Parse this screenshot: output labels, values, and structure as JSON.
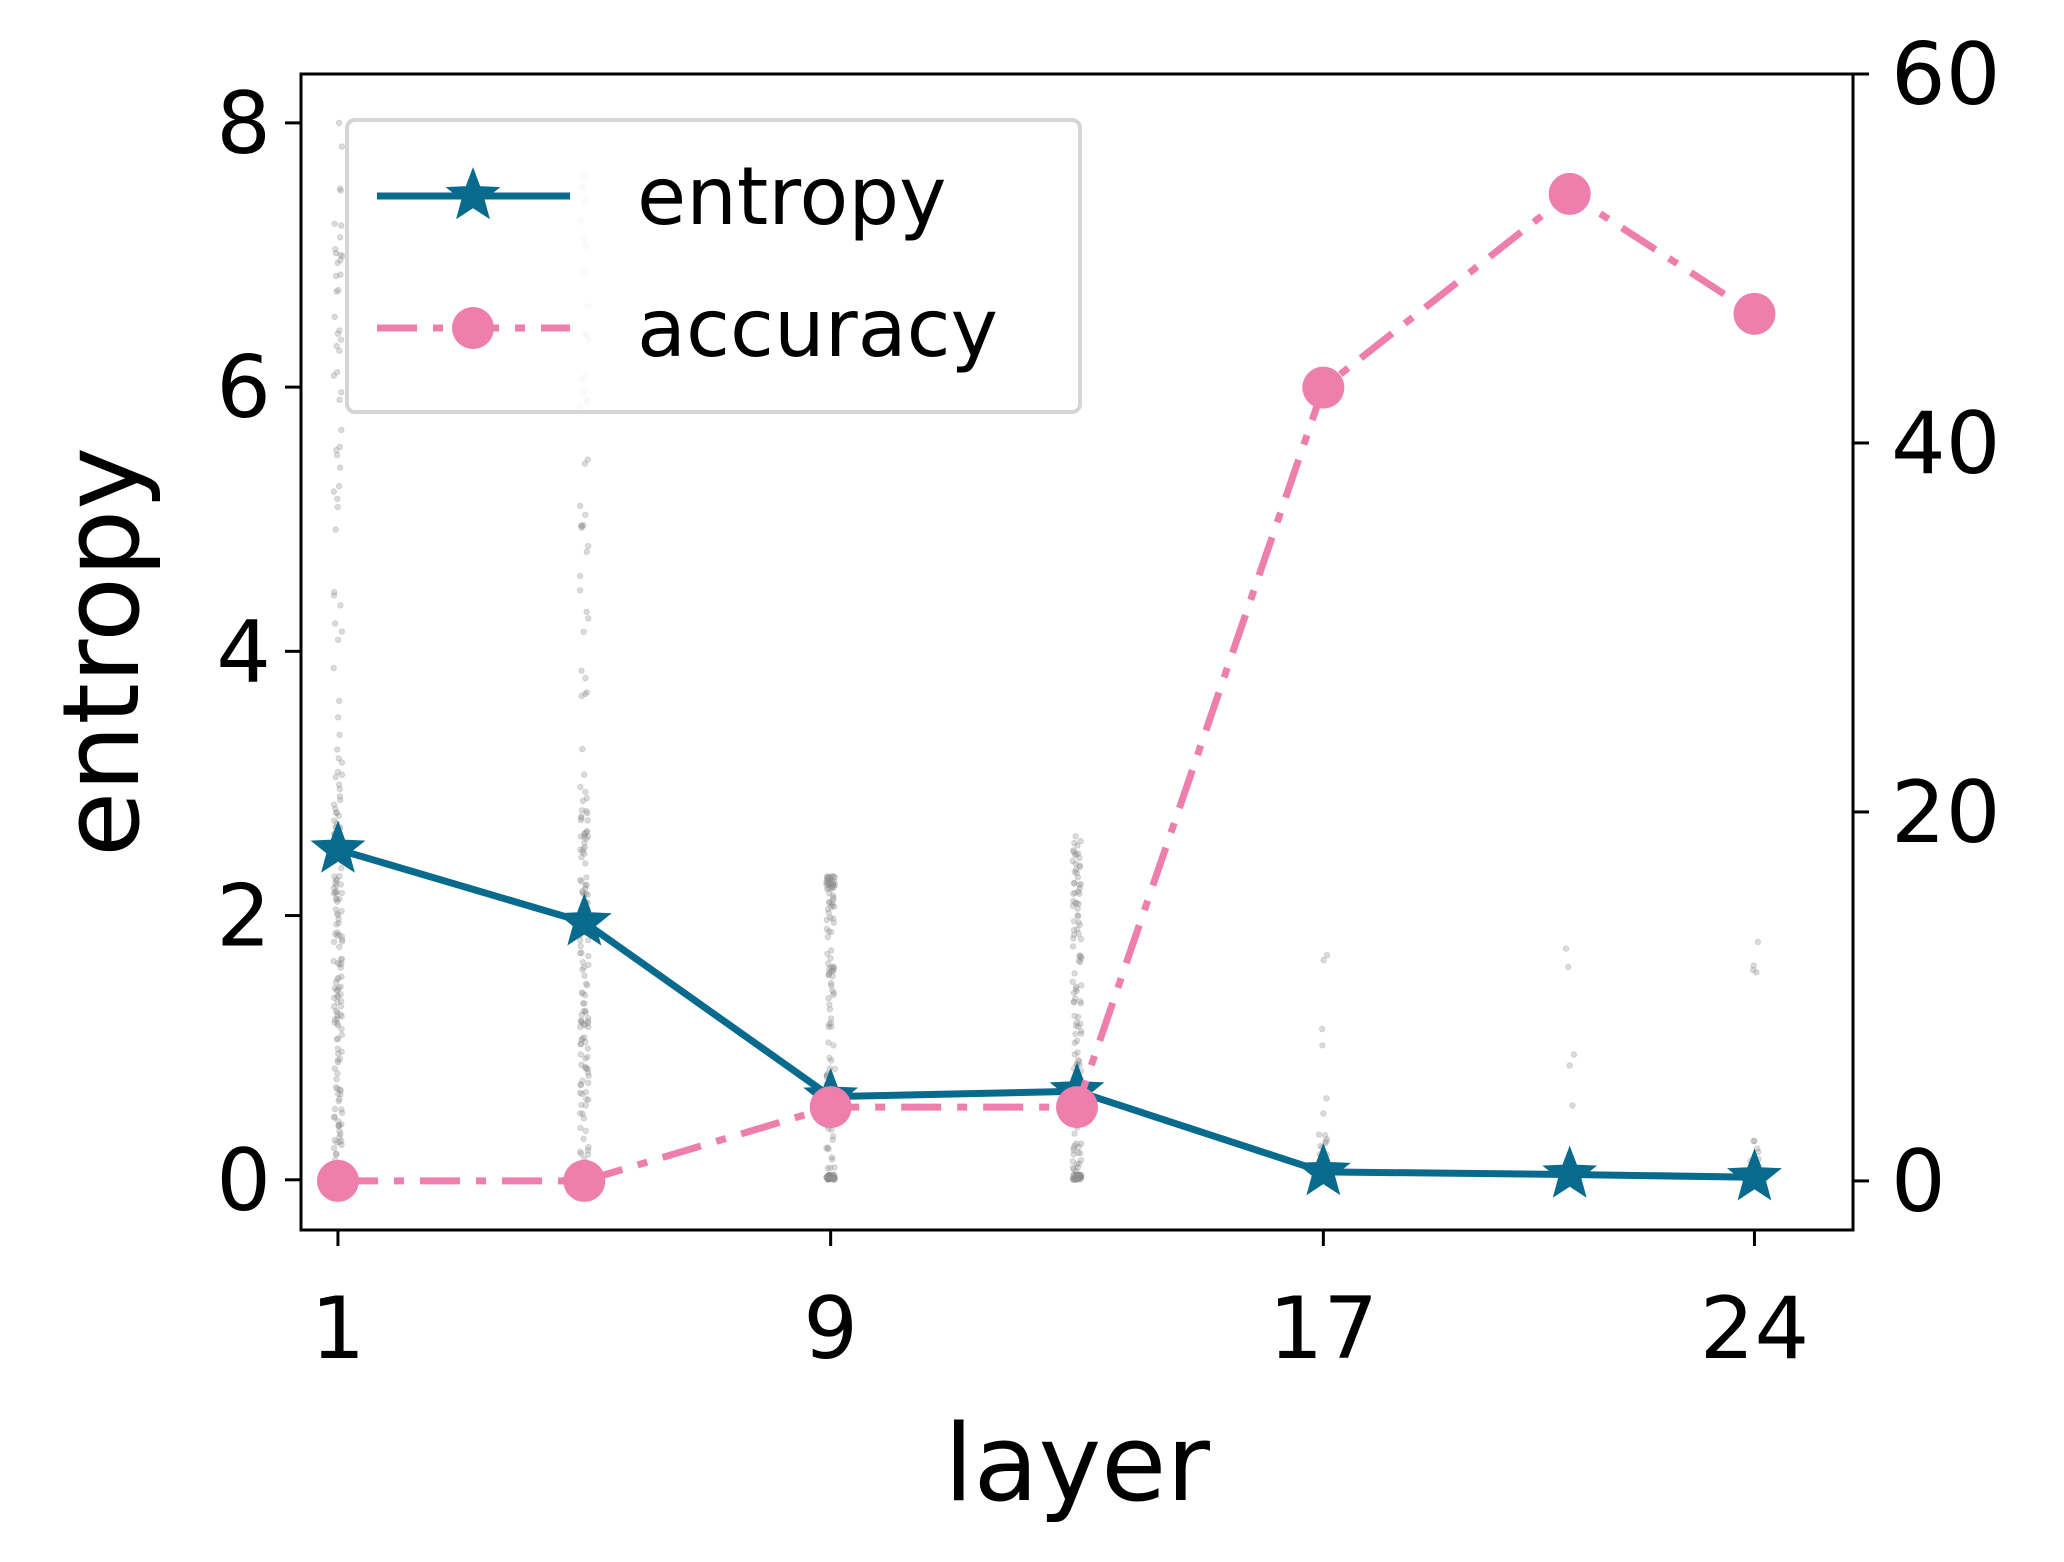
{
  "chart_data": {
    "type": "line",
    "xlabel": "layer",
    "ylabel": "entropy",
    "ylabel_right": "",
    "xlim": [
      -0.6,
      24.6
    ],
    "ylim": [
      -0.38,
      8.37
    ],
    "ylim_right": [
      -2.66,
      60.0
    ],
    "x_ticks": [
      1,
      9,
      17,
      24
    ],
    "x_tick_values": [
      0,
      8,
      16,
      23
    ],
    "y_ticks": [
      0,
      2,
      4,
      6,
      8
    ],
    "y_ticks_right": [
      0,
      20,
      40,
      60
    ],
    "grid": false,
    "legend_position": "top-left",
    "series": [
      {
        "name": "entropy",
        "axis": "left",
        "color": "#086a8c",
        "line_style": "solid",
        "marker": "star",
        "x": [
          0,
          4,
          8,
          12,
          16,
          20,
          23
        ],
        "y": [
          2.5,
          1.95,
          0.63,
          0.67,
          0.06,
          0.04,
          0.02
        ]
      },
      {
        "name": "accuracy",
        "axis": "right",
        "color": "#ee7eab",
        "line_style": "dashdot",
        "marker": "circle",
        "x": [
          0,
          4,
          8,
          12,
          16,
          20,
          23
        ],
        "y": [
          0.0,
          0.0,
          4.0,
          4.0,
          43.0,
          53.5,
          47.0
        ]
      }
    ],
    "scatter": {
      "color": "#999999",
      "groups": [
        {
          "x": 0,
          "y_max": 8.0,
          "dense_max": 3.1,
          "count": 240
        },
        {
          "x": 4,
          "y_max": 7.6,
          "dense_max": 2.9,
          "count": 230
        },
        {
          "x": 8,
          "y_max": 2.3,
          "dense_max": 2.2,
          "count": 150
        },
        {
          "x": 12,
          "y_max": 2.6,
          "dense_max": 2.2,
          "count": 150
        },
        {
          "x": 16,
          "y_max": 1.7,
          "dense_max": 0.35,
          "count": 28
        },
        {
          "x": 20,
          "y_max": 1.75,
          "dense_max": 0.15,
          "count": 12
        },
        {
          "x": 23,
          "y_max": 1.8,
          "dense_max": 0.3,
          "count": 12
        }
      ]
    }
  }
}
